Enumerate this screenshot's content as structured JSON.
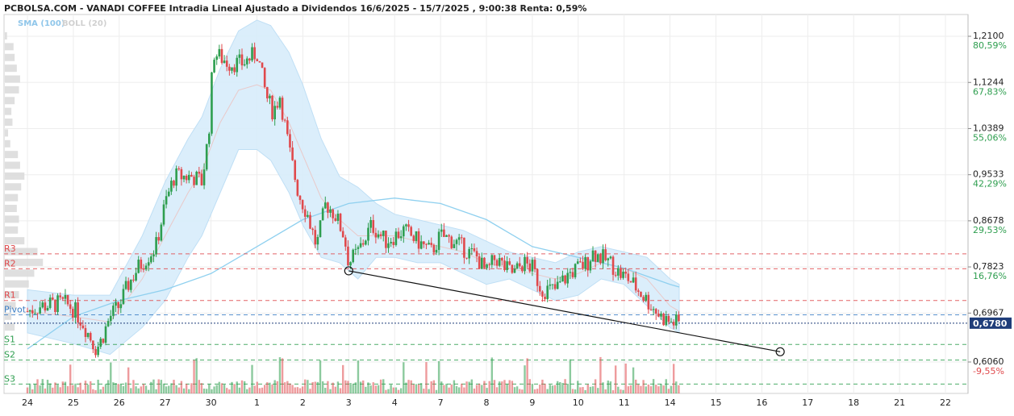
{
  "header": {
    "title": "PCBOLSA.COM - VANADI COFFEE Intradia Lineal Ajustado a Dividendos 16/6/2025 - 15/7/2025 , 9:00:38 Renta: 0,59%"
  },
  "legend": {
    "sma": "SMA (100)",
    "boll": "BOLL (20)"
  },
  "colors": {
    "up": "#2e9e4f",
    "down": "#e0494c",
    "sma": "#8fd0ef",
    "boll_fill": "#d8edfb",
    "resistance": "#e0494c",
    "support": "#2e9e4f",
    "pivot": "#3b7dc4",
    "last_price_bg": "#1f3d7a"
  },
  "chart_data": {
    "type": "candlestick",
    "ylim": [
      0.58,
      1.235
    ],
    "x_ticks": [
      "24",
      "25",
      "26",
      "27",
      "30",
      "1",
      "2",
      "3",
      "4",
      "7",
      "8",
      "9",
      "10",
      "11",
      "14",
      "15",
      "16",
      "17",
      "18",
      "21",
      "22"
    ],
    "y_ticks": [
      {
        "value": 1.21,
        "price": "1,2100",
        "pct": "80,59%"
      },
      {
        "value": 1.1244,
        "price": "1,1244",
        "pct": "67,83%"
      },
      {
        "value": 1.0389,
        "price": "1,0389",
        "pct": "55,06%"
      },
      {
        "value": 0.9533,
        "price": "0,9533",
        "pct": "42,29%"
      },
      {
        "value": 0.8678,
        "price": "0,8678",
        "pct": "29,53%"
      },
      {
        "value": 0.7823,
        "price": "0,7823",
        "pct": "16,76%"
      },
      {
        "value": 0.6967,
        "price": "0,6967",
        "pct": "3,99%"
      },
      {
        "value": 0.606,
        "price": "0,6060",
        "pct": "-9,55%"
      }
    ],
    "last_price": {
      "value": 0.678,
      "label": "0,6780"
    },
    "pivot_levels": [
      {
        "name": "R3",
        "value": 0.8065,
        "kind": "resistance"
      },
      {
        "name": "R2",
        "value": 0.7788,
        "kind": "resistance"
      },
      {
        "name": "R1",
        "value": 0.72,
        "kind": "resistance"
      },
      {
        "name": "Pivot",
        "value": 0.6935,
        "kind": "pivot"
      },
      {
        "name": "S1",
        "value": 0.6385,
        "kind": "support"
      },
      {
        "name": "S2",
        "value": 0.6095,
        "kind": "support"
      },
      {
        "name": "S3",
        "value": 0.565,
        "kind": "support"
      }
    ],
    "anchors": [
      [
        0,
        0.7
      ],
      [
        0.3,
        0.71
      ],
      [
        0.8,
        0.715
      ],
      [
        1.0,
        0.705
      ],
      [
        1.2,
        0.68
      ],
      [
        1.5,
        0.63
      ],
      [
        1.6,
        0.645
      ],
      [
        1.8,
        0.69
      ],
      [
        2.0,
        0.71
      ],
      [
        2.2,
        0.75
      ],
      [
        2.4,
        0.78
      ],
      [
        2.8,
        0.82
      ],
      [
        3.0,
        0.9
      ],
      [
        3.2,
        0.95
      ],
      [
        3.6,
        0.95
      ],
      [
        3.8,
        0.94
      ],
      [
        3.95,
        1.03
      ],
      [
        4.05,
        1.18
      ],
      [
        4.4,
        1.16
      ],
      [
        4.7,
        1.16
      ],
      [
        5.0,
        1.18
      ],
      [
        5.2,
        1.1
      ],
      [
        5.35,
        1.07
      ],
      [
        5.5,
        1.1
      ],
      [
        5.7,
        1.0
      ],
      [
        5.9,
        0.92
      ],
      [
        6.1,
        0.88
      ],
      [
        6.3,
        0.82
      ],
      [
        6.5,
        0.9
      ],
      [
        6.7,
        0.88
      ],
      [
        6.9,
        0.84
      ],
      [
        7.0,
        0.79
      ],
      [
        7.2,
        0.81
      ],
      [
        7.5,
        0.86
      ],
      [
        7.8,
        0.83
      ],
      [
        8.0,
        0.84
      ],
      [
        8.2,
        0.85
      ],
      [
        8.5,
        0.83
      ],
      [
        8.8,
        0.81
      ],
      [
        9.0,
        0.84
      ],
      [
        9.3,
        0.83
      ],
      [
        9.6,
        0.81
      ],
      [
        9.8,
        0.8
      ],
      [
        10.0,
        0.77
      ],
      [
        10.2,
        0.8
      ],
      [
        10.4,
        0.78
      ],
      [
        10.6,
        0.77
      ],
      [
        10.8,
        0.79
      ],
      [
        11.0,
        0.78
      ],
      [
        11.2,
        0.74
      ],
      [
        11.5,
        0.74
      ],
      [
        11.8,
        0.77
      ],
      [
        12.0,
        0.78
      ],
      [
        12.2,
        0.79
      ],
      [
        12.3,
        0.81
      ],
      [
        12.5,
        0.8
      ],
      [
        12.7,
        0.79
      ],
      [
        12.9,
        0.77
      ],
      [
        13.1,
        0.76
      ],
      [
        13.3,
        0.74
      ],
      [
        13.6,
        0.71
      ],
      [
        13.8,
        0.69
      ],
      [
        14.0,
        0.68
      ],
      [
        14.2,
        0.678
      ]
    ],
    "sma_points": [
      [
        0,
        0.63
      ],
      [
        1.0,
        0.69
      ],
      [
        2.0,
        0.72
      ],
      [
        3.0,
        0.74
      ],
      [
        4.0,
        0.77
      ],
      [
        5.0,
        0.82
      ],
      [
        6.0,
        0.87
      ],
      [
        7.0,
        0.9
      ],
      [
        8.0,
        0.91
      ],
      [
        9.0,
        0.9
      ],
      [
        10.0,
        0.87
      ],
      [
        11.0,
        0.82
      ],
      [
        12.0,
        0.8
      ],
      [
        13.0,
        0.78
      ],
      [
        14.0,
        0.75
      ],
      [
        14.2,
        0.745
      ]
    ],
    "boll_points": [
      [
        0,
        0.7,
        0.74,
        0.66
      ],
      [
        1.0,
        0.69,
        0.73,
        0.64
      ],
      [
        1.8,
        0.68,
        0.73,
        0.62
      ],
      [
        2.5,
        0.76,
        0.84,
        0.67
      ],
      [
        3.0,
        0.84,
        0.94,
        0.72
      ],
      [
        3.5,
        0.92,
        1.02,
        0.8
      ],
      [
        3.8,
        0.96,
        1.06,
        0.84
      ],
      [
        4.2,
        1.05,
        1.15,
        0.92
      ],
      [
        4.6,
        1.11,
        1.22,
        1.0
      ],
      [
        5.0,
        1.12,
        1.24,
        1.0
      ],
      [
        5.3,
        1.11,
        1.23,
        0.98
      ],
      [
        5.7,
        1.05,
        1.18,
        0.92
      ],
      [
        6.0,
        0.99,
        1.12,
        0.86
      ],
      [
        6.4,
        0.91,
        1.02,
        0.8
      ],
      [
        6.8,
        0.87,
        0.95,
        0.79
      ],
      [
        7.2,
        0.84,
        0.93,
        0.76
      ],
      [
        7.6,
        0.84,
        0.9,
        0.8
      ],
      [
        8.0,
        0.84,
        0.88,
        0.8
      ],
      [
        8.5,
        0.83,
        0.87,
        0.79
      ],
      [
        9.0,
        0.82,
        0.86,
        0.79
      ],
      [
        9.5,
        0.81,
        0.85,
        0.77
      ],
      [
        10.0,
        0.79,
        0.83,
        0.75
      ],
      [
        10.5,
        0.78,
        0.81,
        0.76
      ],
      [
        11.0,
        0.77,
        0.8,
        0.74
      ],
      [
        11.5,
        0.76,
        0.79,
        0.72
      ],
      [
        12.0,
        0.77,
        0.81,
        0.73
      ],
      [
        12.5,
        0.79,
        0.82,
        0.76
      ],
      [
        13.0,
        0.78,
        0.81,
        0.75
      ],
      [
        13.5,
        0.76,
        0.8,
        0.71
      ],
      [
        14.0,
        0.71,
        0.76,
        0.67
      ],
      [
        14.2,
        0.7,
        0.75,
        0.66
      ]
    ],
    "trendline": [
      [
        7.0,
        0.775
      ],
      [
        16.4,
        0.625
      ]
    ],
    "volume_profile": [
      [
        1.21,
        2
      ],
      [
        1.19,
        8
      ],
      [
        1.17,
        9
      ],
      [
        1.15,
        11
      ],
      [
        1.13,
        14
      ],
      [
        1.11,
        13
      ],
      [
        1.09,
        9
      ],
      [
        1.07,
        6
      ],
      [
        1.05,
        7
      ],
      [
        1.03,
        3
      ],
      [
        1.01,
        5
      ],
      [
        0.99,
        12
      ],
      [
        0.97,
        14
      ],
      [
        0.95,
        18
      ],
      [
        0.93,
        15
      ],
      [
        0.91,
        12
      ],
      [
        0.89,
        11
      ],
      [
        0.87,
        13
      ],
      [
        0.85,
        12
      ],
      [
        0.83,
        18
      ],
      [
        0.81,
        30
      ],
      [
        0.79,
        35
      ],
      [
        0.77,
        27
      ],
      [
        0.75,
        22
      ],
      [
        0.73,
        13
      ],
      [
        0.71,
        10
      ],
      [
        0.69,
        6
      ],
      [
        0.67,
        9
      ]
    ]
  }
}
